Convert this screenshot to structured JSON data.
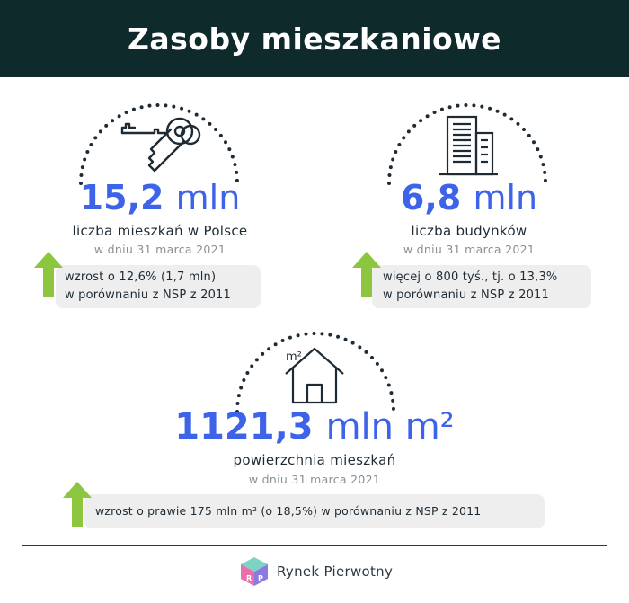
{
  "title": "Zasoby mieszkaniowe",
  "stats": [
    {
      "value": "15,2",
      "unit": "mln",
      "label": "liczba mieszkań w Polsce",
      "date": "w dniu 31 marca 2021",
      "note_line1": "wzrost o 12,6% (1,7 mln)",
      "note_line2": "w porównaniu z NSP z 2011",
      "icon": "keys-icon"
    },
    {
      "value": "6,8",
      "unit": "mln",
      "label": "liczba budynków",
      "date": "w dniu 31 marca 2021",
      "note_line1": "więcej o 800 tyś., tj. o 13,3%",
      "note_line2": "w porównaniu z NSP z 2011",
      "icon": "building-icon"
    },
    {
      "value": "1121,3",
      "unit": "mln m²",
      "label": "powierzchnia mieszkań",
      "date": "w dniu 31 marca 2021",
      "note_line1": "wzrost o prawie 175 mln m² (o 18,5%) w porównaniu z NSP z 2011",
      "icon_text": "m²",
      "icon": "house-icon"
    }
  ],
  "footer": {
    "brand": "Rynek Pierwotny",
    "logo": "cube-logo"
  },
  "colors": {
    "header_bg": "#0f2a2b",
    "accent_blue": "#3d63e8",
    "arrow_green": "#8cc63f",
    "note_bg": "#eeeeee"
  }
}
